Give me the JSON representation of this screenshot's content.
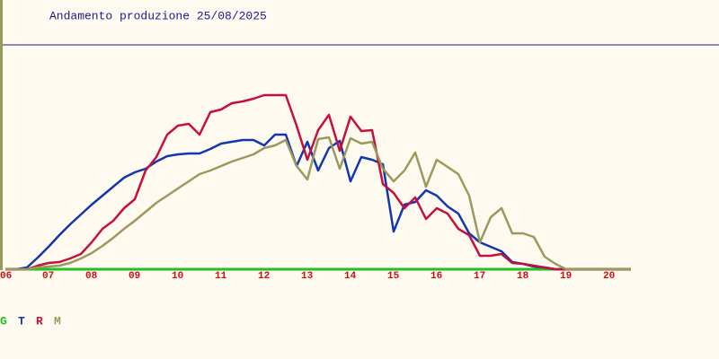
{
  "chart_data": {
    "type": "line",
    "title": "Andamento produzione 25/08/2025",
    "x": [
      6,
      6.25,
      6.5,
      6.75,
      7,
      7.25,
      7.5,
      7.75,
      8,
      8.25,
      8.5,
      8.75,
      9,
      9.25,
      9.5,
      9.75,
      10,
      10.25,
      10.5,
      10.75,
      11,
      11.25,
      11.5,
      11.75,
      12,
      12.25,
      12.5,
      12.75,
      13,
      13.25,
      13.5,
      13.75,
      14,
      14.25,
      14.5,
      14.75,
      15,
      15.25,
      15.5,
      15.75,
      16,
      16.25,
      16.5,
      16.75,
      17,
      17.25,
      17.5,
      17.75,
      18,
      18.25,
      18.5,
      18.75,
      19,
      19.25,
      19.5,
      19.75,
      20,
      20.25,
      20.5
    ],
    "xlim": [
      5.875,
      22.5
    ],
    "ylim": [
      0,
      250
    ],
    "xticks": [
      {
        "value": 6,
        "label": "06"
      },
      {
        "value": 7,
        "label": "07"
      },
      {
        "value": 8,
        "label": "08"
      },
      {
        "value": 9,
        "label": "09"
      },
      10,
      11,
      12,
      13,
      14,
      15,
      16,
      17,
      18,
      19,
      20
    ],
    "series": [
      {
        "name": "G",
        "color": "#22c022",
        "values": [
          0,
          0,
          0,
          0,
          0,
          0,
          0,
          0,
          0,
          0,
          0,
          0,
          0,
          0,
          0,
          0,
          0,
          0,
          0,
          0,
          0,
          0,
          0,
          0,
          0,
          0,
          0,
          0,
          0,
          0,
          0,
          0,
          0,
          0,
          0,
          0,
          0,
          0,
          0,
          0,
          0,
          0,
          0,
          0,
          0,
          0,
          0,
          0,
          0,
          0,
          0,
          0,
          0,
          0,
          0,
          0,
          0,
          0,
          0
        ]
      },
      {
        "name": "T",
        "color": "#1236b0",
        "values": [
          0,
          0,
          2,
          13,
          25,
          38,
          50,
          61,
          72,
          82,
          92,
          102,
          108,
          112,
          120,
          126,
          128,
          129,
          129,
          134,
          140,
          142,
          144,
          144,
          138,
          150,
          150,
          115,
          142,
          110,
          135,
          143,
          98,
          125,
          122,
          117,
          42,
          72,
          75,
          88,
          82,
          70,
          62,
          40,
          30,
          25,
          20,
          8,
          6,
          3,
          2,
          0,
          0,
          0,
          0,
          0,
          0,
          0,
          0
        ]
      },
      {
        "name": "R",
        "color": "#c4103c",
        "values": [
          0,
          0,
          0,
          4,
          7,
          8,
          12,
          17,
          30,
          45,
          54,
          68,
          78,
          110,
          125,
          150,
          160,
          162,
          150,
          175,
          178,
          185,
          187,
          190,
          194,
          194,
          194,
          160,
          122,
          155,
          172,
          132,
          170,
          154,
          155,
          95,
          85,
          68,
          80,
          56,
          68,
          62,
          45,
          38,
          15,
          15,
          17,
          7,
          6,
          4,
          2,
          0,
          0,
          0,
          0,
          0,
          0,
          0,
          0
        ]
      },
      {
        "name": "M",
        "color": "#9a9a5c",
        "values": [
          0,
          0,
          0,
          2,
          3,
          4,
          7,
          12,
          18,
          26,
          35,
          45,
          54,
          64,
          74,
          82,
          90,
          98,
          106,
          110,
          115,
          120,
          124,
          128,
          135,
          138,
          144,
          115,
          100,
          145,
          147,
          112,
          146,
          140,
          142,
          112,
          98,
          110,
          130,
          92,
          122,
          114,
          106,
          82,
          30,
          58,
          68,
          40,
          40,
          36,
          14,
          6,
          0,
          0,
          0,
          0,
          0,
          0,
          0
        ]
      }
    ]
  }
}
